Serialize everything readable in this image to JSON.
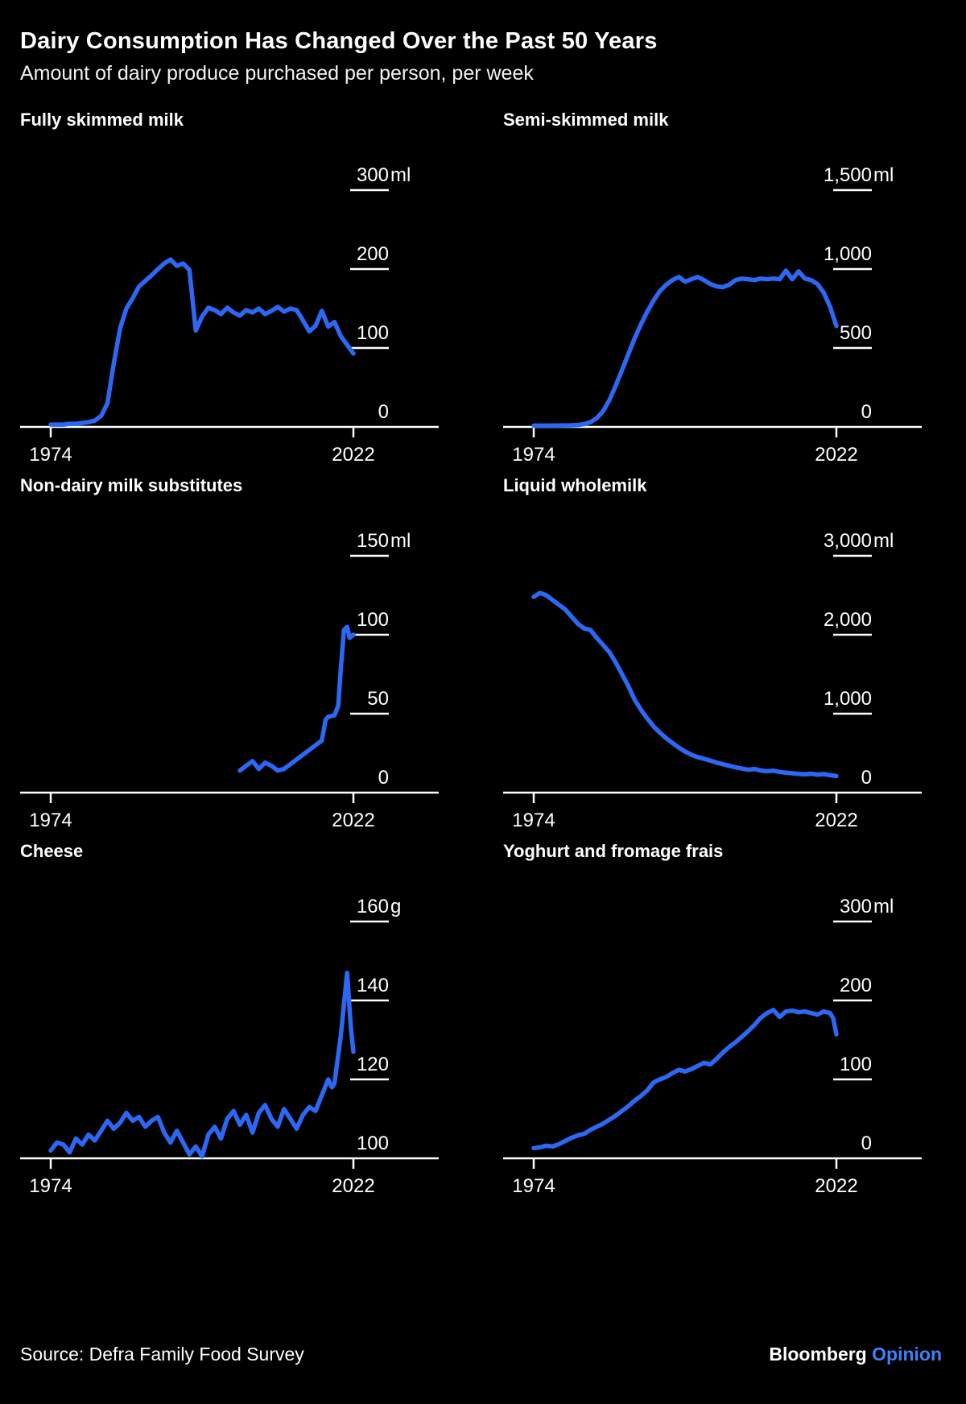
{
  "header": {
    "title": "Dairy Consumption Has Changed Over the Past 50 Years",
    "subtitle": "Amount of dairy produce purchased per person, per week"
  },
  "footer": {
    "source": "Source: Defra Family Food Survey",
    "brand": "Bloomberg",
    "brand_suffix": "Opinion"
  },
  "colors": {
    "background": "#000000",
    "text": "#ffffff",
    "line": "#2d68f4",
    "axis": "#ffffff",
    "opinion_blue": "#3e82f7"
  },
  "chart_data": [
    {
      "type": "line",
      "title": "Fully skimmed milk",
      "unit": "ml",
      "xtick_labels": [
        "1974",
        "2022"
      ],
      "xtick_years": [
        1974,
        2022
      ],
      "ylim": [
        0,
        300
      ],
      "ytick_values": [
        300,
        200,
        100,
        0
      ],
      "ytick_labels": [
        "300",
        "200",
        "100",
        "0"
      ],
      "grid": false,
      "points": [
        [
          1974,
          3
        ],
        [
          1975,
          3
        ],
        [
          1976,
          3
        ],
        [
          1977,
          4
        ],
        [
          1978,
          4
        ],
        [
          1979,
          5
        ],
        [
          1980,
          6
        ],
        [
          1981,
          8
        ],
        [
          1982,
          14
        ],
        [
          1983,
          30
        ],
        [
          1984,
          80
        ],
        [
          1985,
          125
        ],
        [
          1986,
          150
        ],
        [
          1987,
          163
        ],
        [
          1988,
          178
        ],
        [
          1989,
          185
        ],
        [
          1990,
          192
        ],
        [
          1991,
          200
        ],
        [
          1992,
          207
        ],
        [
          1993,
          212
        ],
        [
          1994,
          204
        ],
        [
          1995,
          207
        ],
        [
          1996,
          199
        ],
        [
          1997,
          122
        ],
        [
          1998,
          140
        ],
        [
          1999,
          151
        ],
        [
          2000,
          148
        ],
        [
          2001,
          143
        ],
        [
          2002,
          151
        ],
        [
          2003,
          145
        ],
        [
          2004,
          141
        ],
        [
          2005,
          148
        ],
        [
          2006,
          145
        ],
        [
          2007,
          150
        ],
        [
          2008,
          143
        ],
        [
          2009,
          147
        ],
        [
          2010,
          152
        ],
        [
          2011,
          146
        ],
        [
          2012,
          150
        ],
        [
          2013,
          148
        ],
        [
          2014,
          135
        ],
        [
          2015,
          121
        ],
        [
          2016,
          128
        ],
        [
          2017,
          147
        ],
        [
          2018,
          127
        ],
        [
          2019,
          133
        ],
        [
          2020,
          115
        ],
        [
          2021,
          104
        ],
        [
          2022,
          93
        ]
      ]
    },
    {
      "type": "line",
      "title": "Semi-skimmed milk",
      "unit": "ml",
      "xtick_labels": [
        "1974",
        "2022"
      ],
      "xtick_years": [
        1974,
        2022
      ],
      "ylim": [
        0,
        1500
      ],
      "ytick_values": [
        1500,
        1000,
        500,
        0
      ],
      "ytick_labels": [
        "1,500",
        "1,000",
        "500",
        "0"
      ],
      "grid": false,
      "points": [
        [
          1974,
          8
        ],
        [
          1976,
          8
        ],
        [
          1978,
          9
        ],
        [
          1980,
          10
        ],
        [
          1981,
          12
        ],
        [
          1982,
          18
        ],
        [
          1983,
          30
        ],
        [
          1984,
          55
        ],
        [
          1985,
          100
        ],
        [
          1986,
          170
        ],
        [
          1987,
          260
        ],
        [
          1988,
          360
        ],
        [
          1989,
          460
        ],
        [
          1990,
          560
        ],
        [
          1991,
          650
        ],
        [
          1992,
          730
        ],
        [
          1993,
          800
        ],
        [
          1994,
          860
        ],
        [
          1995,
          900
        ],
        [
          1996,
          930
        ],
        [
          1997,
          950
        ],
        [
          1998,
          920
        ],
        [
          1999,
          935
        ],
        [
          2000,
          950
        ],
        [
          2001,
          930
        ],
        [
          2002,
          905
        ],
        [
          2003,
          890
        ],
        [
          2004,
          885
        ],
        [
          2005,
          900
        ],
        [
          2006,
          930
        ],
        [
          2007,
          940
        ],
        [
          2008,
          935
        ],
        [
          2009,
          930
        ],
        [
          2010,
          940
        ],
        [
          2011,
          935
        ],
        [
          2012,
          940
        ],
        [
          2013,
          935
        ],
        [
          2014,
          990
        ],
        [
          2015,
          935
        ],
        [
          2016,
          985
        ],
        [
          2017,
          940
        ],
        [
          2018,
          930
        ],
        [
          2019,
          905
        ],
        [
          2020,
          850
        ],
        [
          2021,
          760
        ],
        [
          2022,
          640
        ]
      ]
    },
    {
      "type": "line",
      "title": "Non-dairy milk substitutes",
      "unit": "ml",
      "xtick_labels": [
        "1974",
        "2022"
      ],
      "xtick_years": [
        1974,
        2022
      ],
      "ylim": [
        0,
        150
      ],
      "ytick_values": [
        150,
        100,
        50,
        0
      ],
      "ytick_labels": [
        "150",
        "100",
        "50",
        "0"
      ],
      "grid": false,
      "points": [
        [
          2004,
          14
        ],
        [
          2005,
          17
        ],
        [
          2006,
          20
        ],
        [
          2007,
          15
        ],
        [
          2008,
          19
        ],
        [
          2009,
          17
        ],
        [
          2010,
          14
        ],
        [
          2011,
          15
        ],
        [
          2012,
          18
        ],
        [
          2013,
          21
        ],
        [
          2014,
          24
        ],
        [
          2015,
          27
        ],
        [
          2016,
          30
        ],
        [
          2017,
          33
        ],
        [
          2017.6,
          46
        ],
        [
          2018,
          48
        ],
        [
          2019,
          49
        ],
        [
          2019.6,
          55
        ],
        [
          2020,
          78
        ],
        [
          2020.5,
          103
        ],
        [
          2021,
          105
        ],
        [
          2021.4,
          98
        ],
        [
          2022,
          100
        ]
      ]
    },
    {
      "type": "line",
      "title": "Liquid wholemilk",
      "unit": "ml",
      "xtick_labels": [
        "1974",
        "2022"
      ],
      "xtick_years": [
        1974,
        2022
      ],
      "ylim": [
        0,
        3000
      ],
      "ytick_values": [
        3000,
        2000,
        1000,
        0
      ],
      "ytick_labels": [
        "3,000",
        "2,000",
        "1,000",
        "0"
      ],
      "grid": false,
      "points": [
        [
          1974,
          2480
        ],
        [
          1975,
          2530
        ],
        [
          1976,
          2500
        ],
        [
          1977,
          2440
        ],
        [
          1978,
          2380
        ],
        [
          1979,
          2320
        ],
        [
          1980,
          2230
        ],
        [
          1981,
          2140
        ],
        [
          1982,
          2080
        ],
        [
          1983,
          2060
        ],
        [
          1984,
          1960
        ],
        [
          1985,
          1870
        ],
        [
          1986,
          1780
        ],
        [
          1987,
          1650
        ],
        [
          1988,
          1500
        ],
        [
          1989,
          1350
        ],
        [
          1990,
          1180
        ],
        [
          1991,
          1050
        ],
        [
          1992,
          940
        ],
        [
          1993,
          840
        ],
        [
          1994,
          760
        ],
        [
          1995,
          690
        ],
        [
          1996,
          630
        ],
        [
          1997,
          570
        ],
        [
          1998,
          520
        ],
        [
          1999,
          480
        ],
        [
          2000,
          450
        ],
        [
          2001,
          430
        ],
        [
          2002,
          405
        ],
        [
          2003,
          380
        ],
        [
          2004,
          360
        ],
        [
          2005,
          340
        ],
        [
          2006,
          320
        ],
        [
          2007,
          305
        ],
        [
          2008,
          290
        ],
        [
          2009,
          300
        ],
        [
          2010,
          280
        ],
        [
          2011,
          270
        ],
        [
          2012,
          278
        ],
        [
          2013,
          262
        ],
        [
          2014,
          252
        ],
        [
          2015,
          245
        ],
        [
          2016,
          238
        ],
        [
          2017,
          232
        ],
        [
          2018,
          240
        ],
        [
          2019,
          228
        ],
        [
          2020,
          235
        ],
        [
          2021,
          220
        ],
        [
          2022,
          210
        ]
      ]
    },
    {
      "type": "line",
      "title": "Cheese",
      "unit": "g",
      "xtick_labels": [
        "1974",
        "2022"
      ],
      "xtick_years": [
        1974,
        2022
      ],
      "ylim": [
        100,
        160
      ],
      "ytick_values": [
        160,
        140,
        120,
        100
      ],
      "ytick_labels": [
        "160",
        "140",
        "120",
        "100"
      ],
      "grid": false,
      "points": [
        [
          1974,
          102
        ],
        [
          1975,
          104
        ],
        [
          1976,
          103.5
        ],
        [
          1977,
          101.5
        ],
        [
          1978,
          105
        ],
        [
          1979,
          103.5
        ],
        [
          1980,
          106
        ],
        [
          1981,
          104.5
        ],
        [
          1982,
          107
        ],
        [
          1983,
          109.5
        ],
        [
          1984,
          107.5
        ],
        [
          1985,
          109
        ],
        [
          1986,
          111.5
        ],
        [
          1987,
          109.5
        ],
        [
          1988,
          110.5
        ],
        [
          1989,
          108
        ],
        [
          1990,
          109.5
        ],
        [
          1991,
          110.5
        ],
        [
          1992,
          106.5
        ],
        [
          1993,
          104
        ],
        [
          1994,
          107
        ],
        [
          1995,
          104
        ],
        [
          1996,
          101
        ],
        [
          1997,
          103
        ],
        [
          1998,
          100.5
        ],
        [
          1999,
          106
        ],
        [
          2000,
          108
        ],
        [
          2001,
          105
        ],
        [
          2002,
          110
        ],
        [
          2003,
          112
        ],
        [
          2004,
          108.5
        ],
        [
          2005,
          111
        ],
        [
          2006,
          106.5
        ],
        [
          2007,
          111.5
        ],
        [
          2008,
          113.5
        ],
        [
          2009,
          110
        ],
        [
          2010,
          108
        ],
        [
          2011,
          112.5
        ],
        [
          2012,
          110
        ],
        [
          2013,
          107.5
        ],
        [
          2014,
          111
        ],
        [
          2015,
          113
        ],
        [
          2016,
          112
        ],
        [
          2017,
          116
        ],
        [
          2018,
          120
        ],
        [
          2018.6,
          118
        ],
        [
          2019,
          119
        ],
        [
          2020,
          131
        ],
        [
          2021,
          147
        ],
        [
          2021.6,
          133
        ],
        [
          2022,
          127
        ]
      ]
    },
    {
      "type": "line",
      "title": "Yoghurt and fromage frais",
      "unit": "ml",
      "xtick_labels": [
        "1974",
        "2022"
      ],
      "xtick_years": [
        1974,
        2022
      ],
      "ylim": [
        0,
        300
      ],
      "ytick_values": [
        300,
        200,
        100,
        0
      ],
      "ytick_labels": [
        "300",
        "200",
        "100",
        "0"
      ],
      "grid": false,
      "points": [
        [
          1974,
          13
        ],
        [
          1975,
          14
        ],
        [
          1976,
          16
        ],
        [
          1977,
          15
        ],
        [
          1978,
          18
        ],
        [
          1979,
          22
        ],
        [
          1980,
          26
        ],
        [
          1981,
          29
        ],
        [
          1982,
          31
        ],
        [
          1983,
          36
        ],
        [
          1984,
          40
        ],
        [
          1985,
          44
        ],
        [
          1986,
          49
        ],
        [
          1987,
          54
        ],
        [
          1988,
          60
        ],
        [
          1989,
          66
        ],
        [
          1990,
          73
        ],
        [
          1991,
          79
        ],
        [
          1992,
          86
        ],
        [
          1993,
          96
        ],
        [
          1994,
          100
        ],
        [
          1995,
          103
        ],
        [
          1996,
          108
        ],
        [
          1997,
          112
        ],
        [
          1998,
          110
        ],
        [
          1999,
          113
        ],
        [
          2000,
          117
        ],
        [
          2001,
          121
        ],
        [
          2002,
          119
        ],
        [
          2003,
          126
        ],
        [
          2004,
          134
        ],
        [
          2005,
          141
        ],
        [
          2006,
          147
        ],
        [
          2007,
          154
        ],
        [
          2008,
          161
        ],
        [
          2009,
          169
        ],
        [
          2010,
          178
        ],
        [
          2011,
          184
        ],
        [
          2012,
          188
        ],
        [
          2013,
          179
        ],
        [
          2014,
          186
        ],
        [
          2015,
          187
        ],
        [
          2016,
          185
        ],
        [
          2017,
          186
        ],
        [
          2018,
          184
        ],
        [
          2019,
          182
        ],
        [
          2020,
          186
        ],
        [
          2021,
          184
        ],
        [
          2021.5,
          177
        ],
        [
          2022,
          157
        ]
      ]
    }
  ]
}
